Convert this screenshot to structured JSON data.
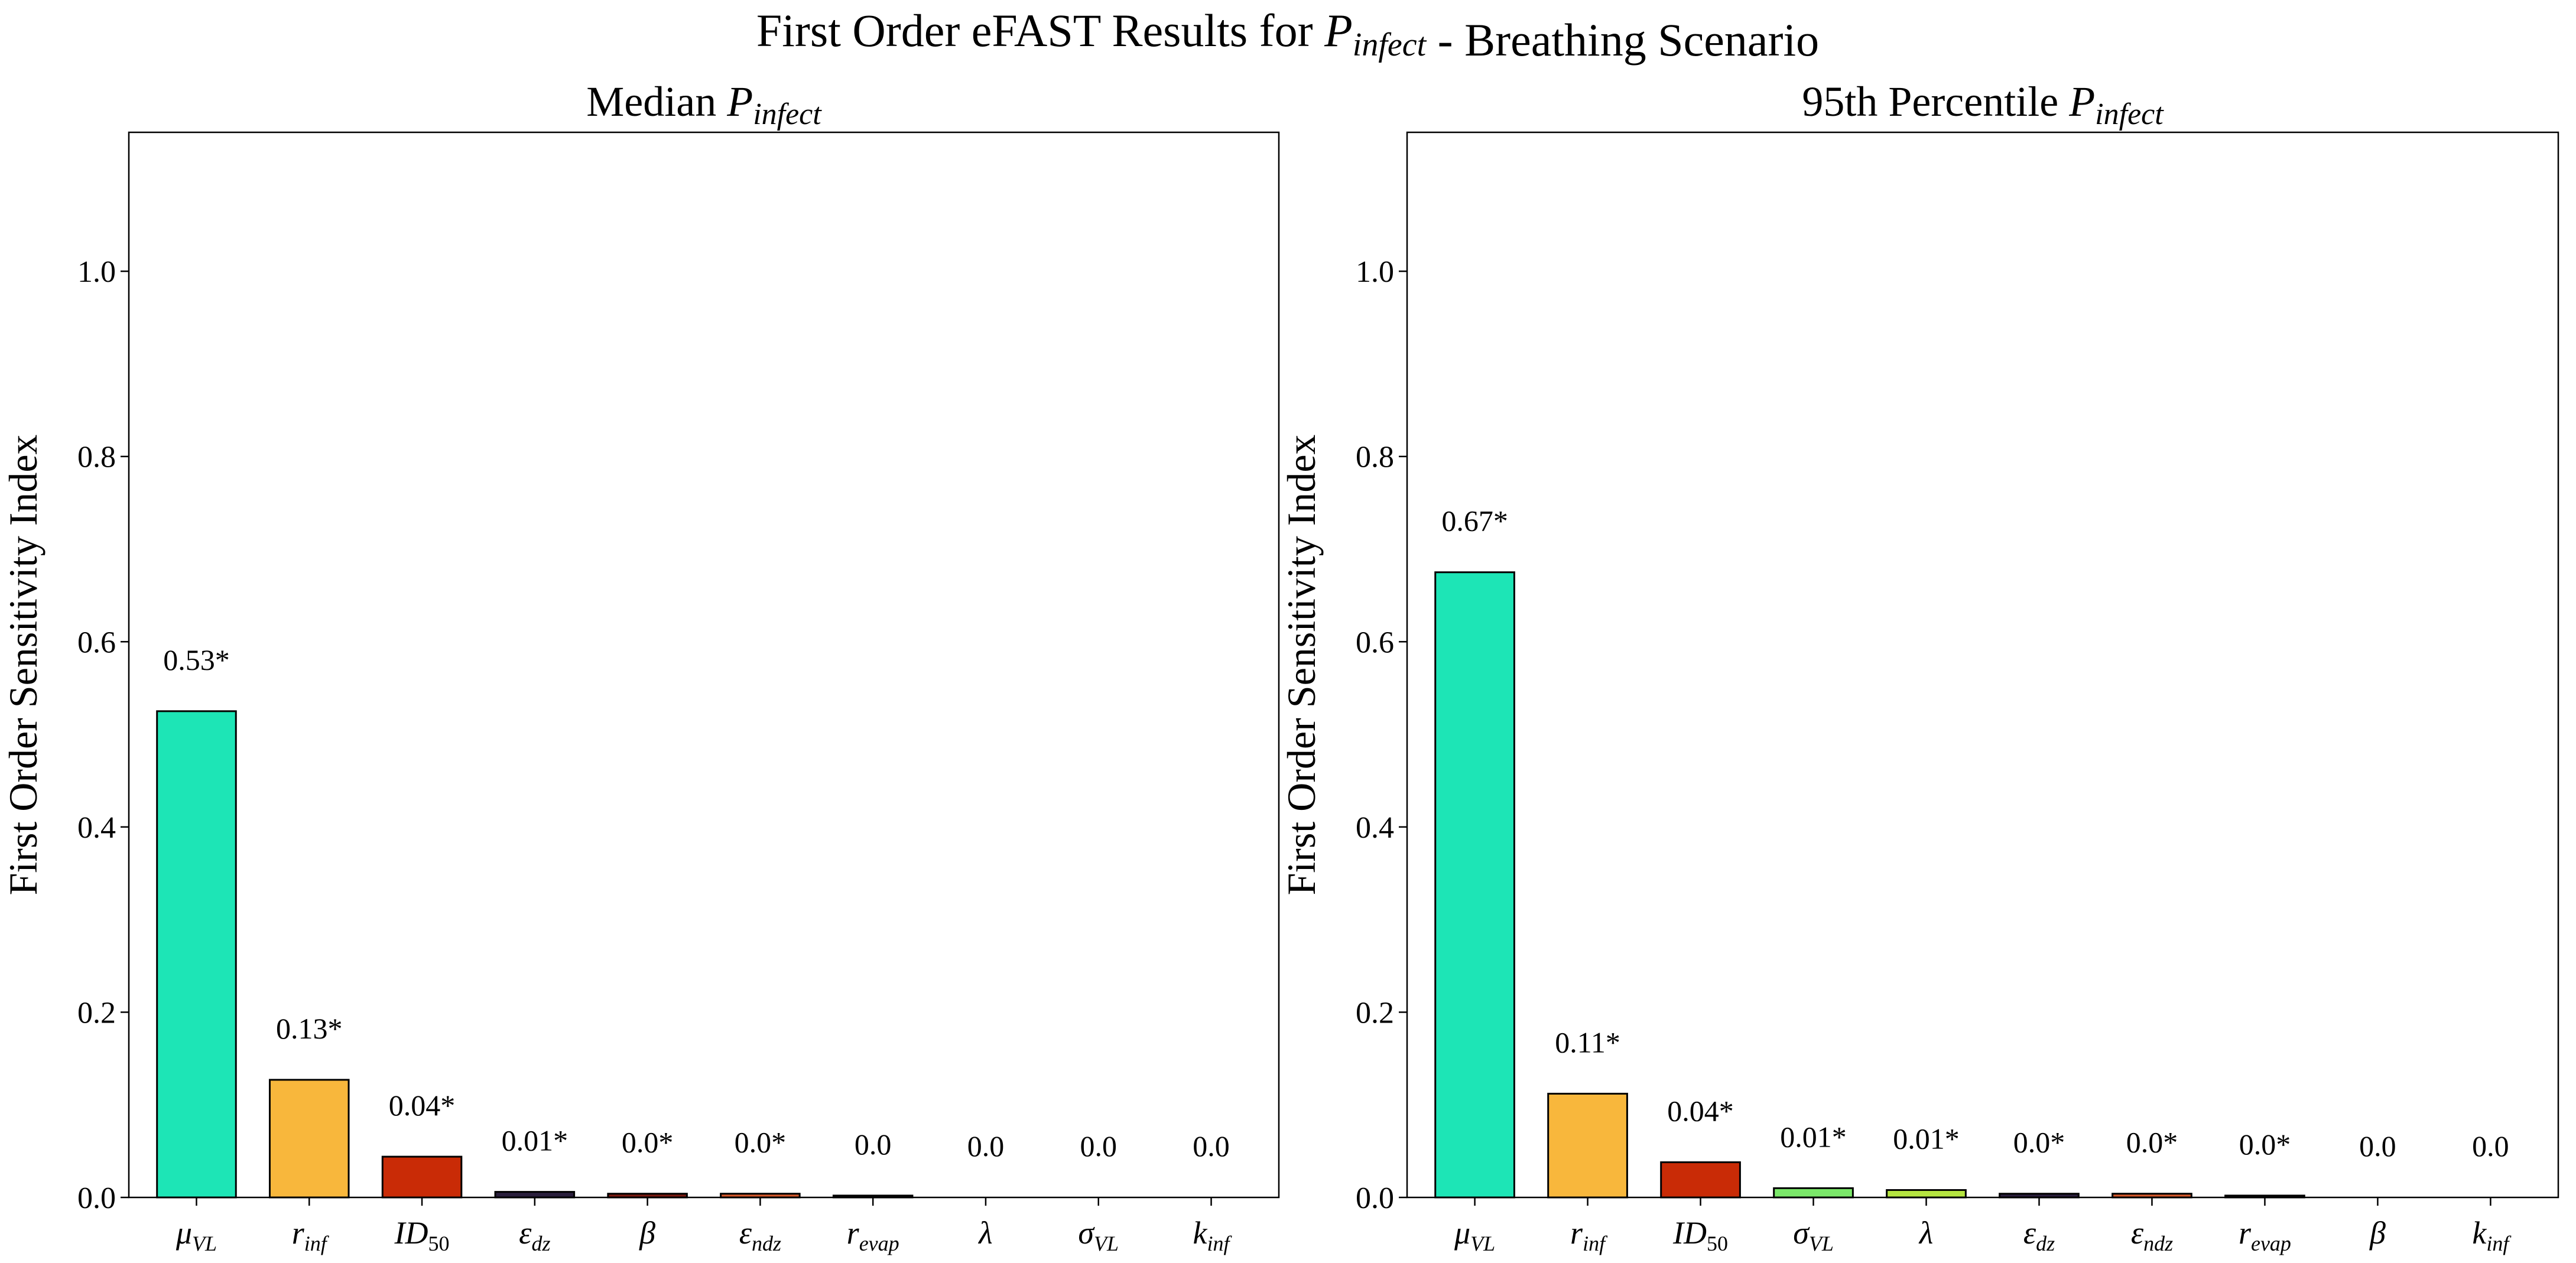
{
  "figure": {
    "title_parts": [
      {
        "text": "First Order eFAST Results for ",
        "style": "normal"
      },
      {
        "text": "P",
        "style": "italic"
      },
      {
        "text": "infect",
        "style": "italic-sub"
      },
      {
        "text": " - Breathing Scenario",
        "style": "normal"
      }
    ]
  },
  "chart_data": [
    {
      "type": "bar",
      "title_parts": [
        {
          "text": "Median ",
          "style": "normal"
        },
        {
          "text": "P",
          "style": "italic"
        },
        {
          "text": "infect",
          "style": "italic-sub"
        }
      ],
      "ylabel": "First Order Sensitivity Index",
      "xlabel": "",
      "ylim": [
        0,
        1.15
      ],
      "yticks": [
        0.0,
        0.2,
        0.4,
        0.6,
        0.8,
        1.0
      ],
      "ytick_labels": [
        "0.0",
        "0.2",
        "0.4",
        "0.6",
        "0.8",
        "1.0"
      ],
      "categories": [
        {
          "base": "μ",
          "sub": "VL"
        },
        {
          "base": "r",
          "sub": "inf"
        },
        {
          "base": "ID",
          "sub": "50"
        },
        {
          "base": "ε",
          "sub": "dz"
        },
        {
          "base": "β",
          "sub": ""
        },
        {
          "base": "ε",
          "sub": "ndz"
        },
        {
          "base": "r",
          "sub": "evap"
        },
        {
          "base": "λ",
          "sub": ""
        },
        {
          "base": "σ",
          "sub": "VL"
        },
        {
          "base": "k",
          "sub": "inf"
        }
      ],
      "values": [
        0.525,
        0.127,
        0.044,
        0.006,
        0.004,
        0.004,
        0.002,
        0.0,
        0.0,
        0.0
      ],
      "data_labels": [
        "0.53*",
        "0.13*",
        "0.04*",
        "0.01*",
        "0.0*",
        "0.0*",
        "0.0",
        "0.0",
        "0.0",
        "0.0"
      ],
      "colors": [
        "#1de5b6",
        "#f8b73c",
        "#c92b06",
        "#2a1e3c",
        "#7a1a10",
        "#d4582a",
        "#4a4a4a",
        "#b5e540",
        "#7be86a",
        "#ffffff"
      ]
    },
    {
      "type": "bar",
      "title_parts": [
        {
          "text": "95th Percentile ",
          "style": "normal"
        },
        {
          "text": "P",
          "style": "italic"
        },
        {
          "text": "infect",
          "style": "italic-sub"
        }
      ],
      "ylabel": "First Order Sensitivity Index",
      "xlabel": "",
      "ylim": [
        0,
        1.15
      ],
      "yticks": [
        0.0,
        0.2,
        0.4,
        0.6,
        0.8,
        1.0
      ],
      "ytick_labels": [
        "0.0",
        "0.2",
        "0.4",
        "0.6",
        "0.8",
        "1.0"
      ],
      "categories": [
        {
          "base": "μ",
          "sub": "VL"
        },
        {
          "base": "r",
          "sub": "inf"
        },
        {
          "base": "ID",
          "sub": "50"
        },
        {
          "base": "σ",
          "sub": "VL"
        },
        {
          "base": "λ",
          "sub": ""
        },
        {
          "base": "ε",
          "sub": "dz"
        },
        {
          "base": "ε",
          "sub": "ndz"
        },
        {
          "base": "r",
          "sub": "evap"
        },
        {
          "base": "β",
          "sub": ""
        },
        {
          "base": "k",
          "sub": "inf"
        }
      ],
      "values": [
        0.675,
        0.112,
        0.038,
        0.01,
        0.008,
        0.004,
        0.004,
        0.002,
        0.0,
        0.0
      ],
      "data_labels": [
        "0.67*",
        "0.11*",
        "0.04*",
        "0.01*",
        "0.01*",
        "0.0*",
        "0.0*",
        "0.0*",
        "0.0",
        "0.0"
      ],
      "colors": [
        "#1de5b6",
        "#f8b73c",
        "#c92b06",
        "#7be86a",
        "#b5e540",
        "#2a1e3c",
        "#d4582a",
        "#4a4a4a",
        "#7a1a10",
        "#ffffff"
      ]
    }
  ]
}
